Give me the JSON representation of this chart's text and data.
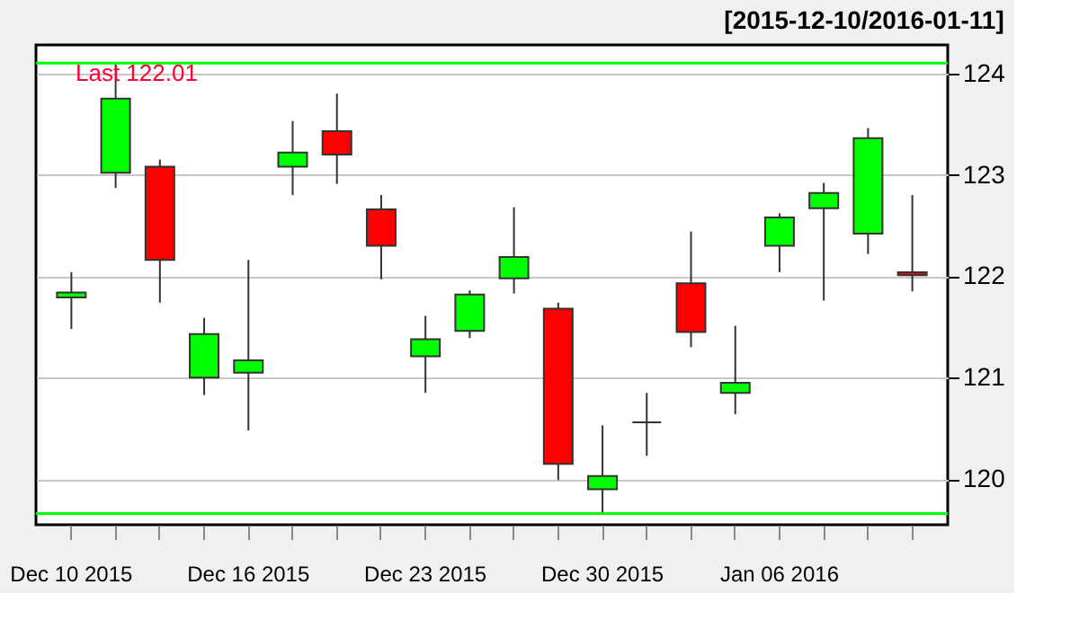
{
  "chart_data": {
    "type": "candlestick",
    "title": "[2015-12-10/2016-01-11]",
    "categories": [
      "Dec 10 2015",
      null,
      null,
      null,
      "Dec 16 2015",
      null,
      null,
      null,
      "Dec 23 2015",
      null,
      null,
      null,
      "Dec 30 2015",
      null,
      null,
      null,
      "Jan 06 2016",
      null,
      null,
      null
    ],
    "ohlc": [
      [
        121.79,
        122.04,
        121.48,
        121.84
      ],
      [
        123.02,
        124.1,
        122.87,
        123.75
      ],
      [
        123.08,
        123.15,
        121.74,
        122.16
      ],
      [
        121.0,
        121.59,
        120.83,
        121.43
      ],
      [
        121.05,
        122.16,
        120.48,
        121.17
      ],
      [
        123.08,
        123.53,
        122.8,
        123.22
      ],
      [
        123.43,
        123.8,
        122.91,
        123.2
      ],
      [
        122.66,
        122.8,
        121.97,
        122.3
      ],
      [
        121.21,
        121.61,
        120.85,
        121.38
      ],
      [
        121.46,
        121.86,
        121.39,
        121.82
      ],
      [
        121.98,
        122.68,
        121.83,
        122.19
      ],
      [
        121.68,
        121.74,
        119.99,
        120.15
      ],
      [
        119.9,
        120.53,
        119.66,
        120.03
      ],
      [
        120.56,
        120.85,
        120.23,
        120.56
      ],
      [
        121.93,
        122.44,
        121.3,
        121.45
      ],
      [
        120.85,
        121.51,
        120.64,
        120.95
      ],
      [
        122.3,
        122.62,
        122.04,
        122.58
      ],
      [
        122.67,
        122.92,
        121.76,
        122.82
      ],
      [
        122.42,
        123.46,
        122.22,
        123.36
      ],
      [
        122.04,
        122.8,
        121.85,
        122.01
      ]
    ],
    "colors": [
      "#00ff00",
      "#00ff00",
      "#ff0000",
      "#00ff00",
      "#00ff00",
      "#00ff00",
      "#ff0000",
      "#ff0000",
      "#00ff00",
      "#00ff00",
      "#00ff00",
      "#ff0000",
      "#00ff00",
      "#333333",
      "#ff0000",
      "#00ff00",
      "#00ff00",
      "#00ff00",
      "#00ff00",
      "#ff0000"
    ],
    "ylim": [
      119.55,
      124.28
    ],
    "yticks": [
      120,
      121,
      122,
      123,
      124
    ],
    "grid": "y",
    "ref_lines": [
      {
        "axis": "y",
        "value": 124.1,
        "color": "#00ff00"
      },
      {
        "axis": "y",
        "value": 119.66,
        "color": "#00ff00"
      }
    ],
    "annotations": [
      "Last 122.01"
    ]
  }
}
